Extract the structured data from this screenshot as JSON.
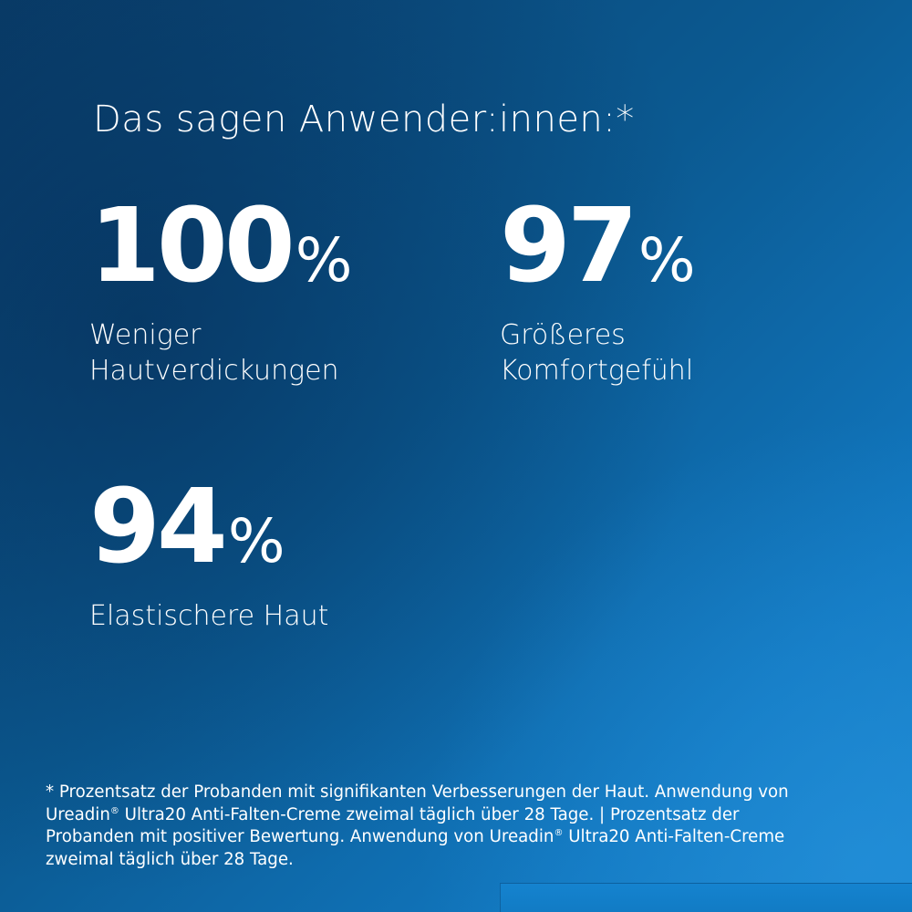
{
  "heading": "Das sagen Anwender:innen:*",
  "stats": [
    {
      "number": "100",
      "unit": "%",
      "label_line1": "Weniger",
      "label_line2": "Hautverdickungen"
    },
    {
      "number": "97",
      "unit": "%",
      "label_line1": "Größeres",
      "label_line2": "Komfortgefühl"
    },
    {
      "number": "94",
      "unit": "%",
      "label_line1": "Elastischere Haut",
      "label_line2": ""
    }
  ],
  "footnote": {
    "line1": "* Prozentsatz der Probanden mit signifikanten Verbesserungen der Haut. Anwendung von",
    "line2_a": "Ureadin",
    "line2_reg": "®",
    "line2_b": " Ultra20 Anti-Falten-Creme zweimal täglich über 28 Tage. | Prozentsatz der",
    "line3_a": "Probanden mit positiver Bewertung. Anwendung von Ureadin",
    "line3_reg": "®",
    "line3_b": " Ultra20 Anti-Falten-Creme",
    "line4": "zweimal täglich über 28 Tage."
  },
  "colors": {
    "background_dark": "#0a3f6c",
    "background_light": "#1a84cc",
    "text": "#ffffff"
  }
}
